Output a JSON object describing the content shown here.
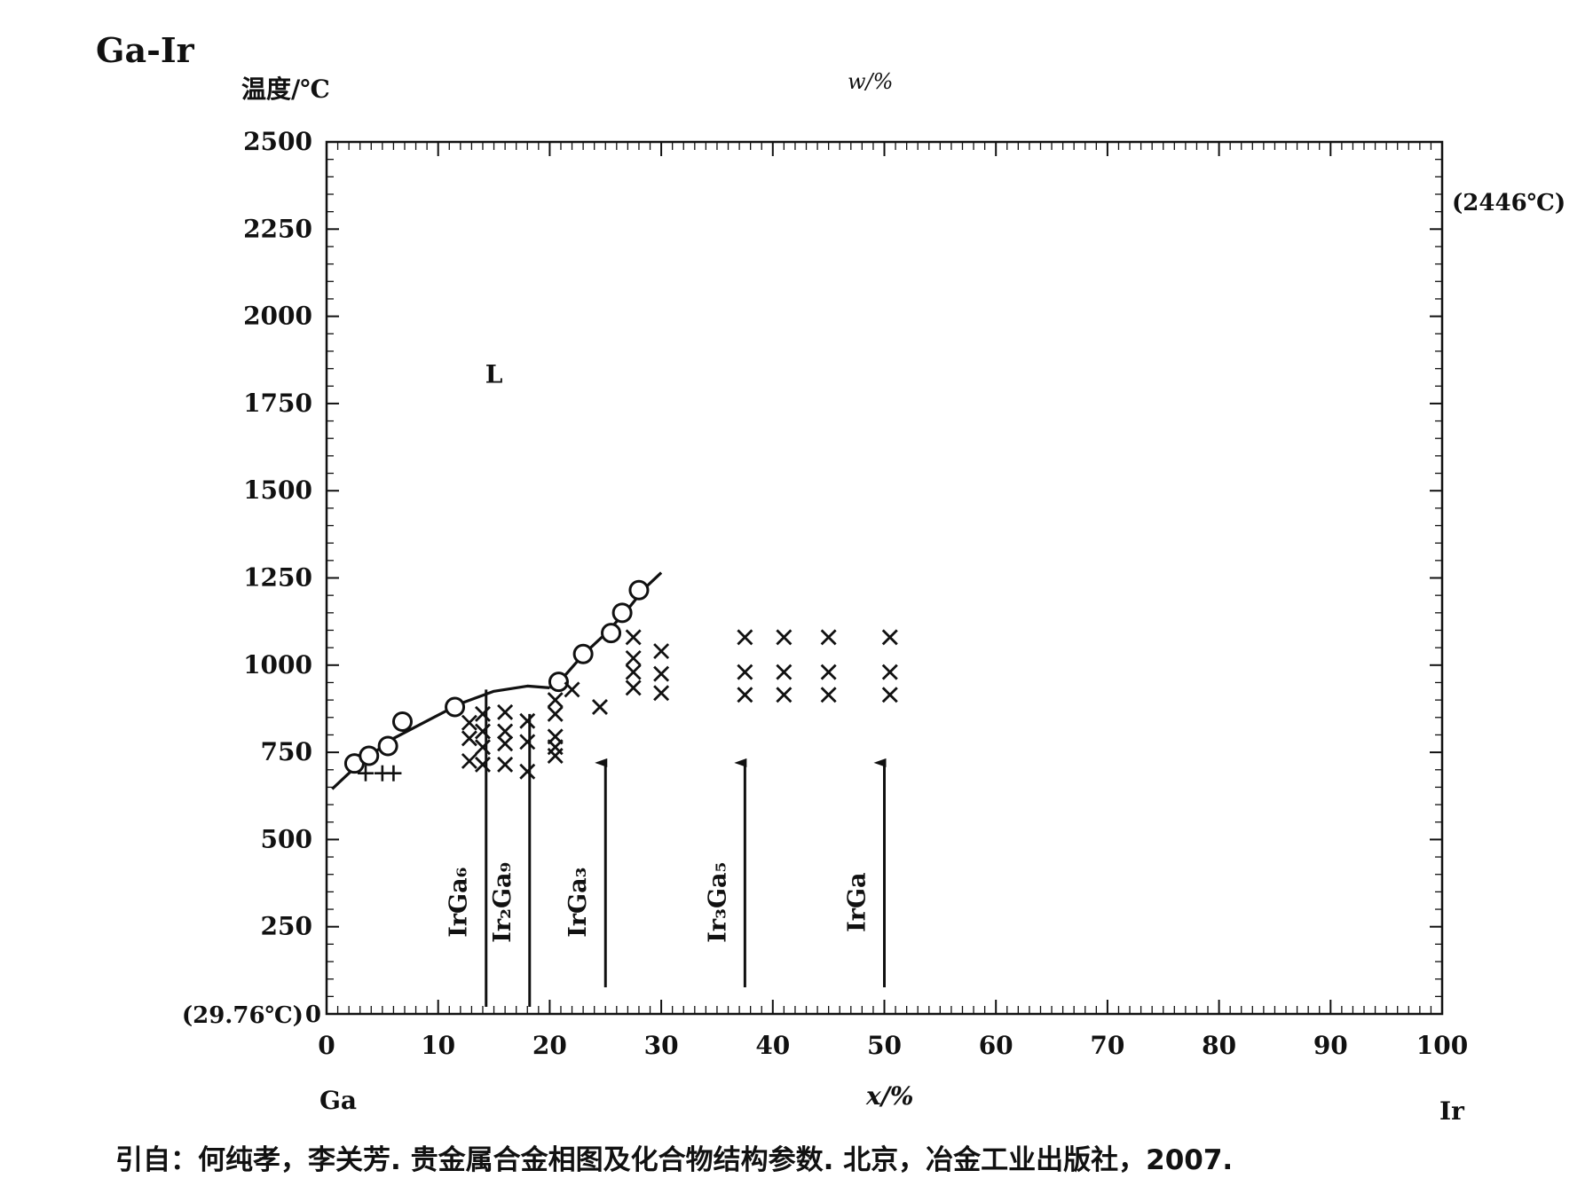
{
  "page": {
    "title": "Ga-Ir",
    "citation": "引自：何纯孝，李关芳. 贵金属合金相图及化合物结构参数. 北京，冶金工业出版社，2007."
  },
  "chart_data": {
    "type": "scatter",
    "title": "Ga-Ir",
    "ylabel": "温度/℃",
    "xlabel": "x/%",
    "top_axis_label": "w/%",
    "left_element": "Ga",
    "right_element": "Ir",
    "xlim": [
      0,
      100
    ],
    "ylim": [
      0,
      2500
    ],
    "x_ticks": [
      0,
      10,
      20,
      30,
      40,
      50,
      60,
      70,
      80,
      90,
      100
    ],
    "y_ticks": [
      0,
      250,
      500,
      750,
      1000,
      1250,
      1500,
      1750,
      2000,
      2250,
      2500
    ],
    "y_min_note": "(29.76℃)",
    "ir_melting_note": "(2446℃)",
    "ir_melting_point": 2446,
    "region_labels": [
      {
        "text": "L",
        "x": 15,
        "y": 1810
      }
    ],
    "liquidus_segments": [
      [
        [
          0.5,
          645
        ],
        [
          3,
          720
        ],
        [
          6,
          790
        ],
        [
          9,
          840
        ],
        [
          12,
          890
        ],
        [
          15,
          925
        ],
        [
          18,
          940
        ],
        [
          20,
          935
        ]
      ],
      [
        [
          20,
          935
        ],
        [
          21.5,
          975
        ],
        [
          23,
          1030
        ],
        [
          25,
          1090
        ],
        [
          27,
          1160
        ],
        [
          28.5,
          1220
        ],
        [
          30,
          1265
        ]
      ]
    ],
    "circle_points": [
      [
        2.5,
        718
      ],
      [
        3.8,
        740
      ],
      [
        5.5,
        768
      ],
      [
        6.8,
        838
      ],
      [
        11.5,
        880
      ],
      [
        20.8,
        952
      ],
      [
        23,
        1032
      ],
      [
        25.5,
        1092
      ],
      [
        26.5,
        1150
      ],
      [
        28,
        1215
      ]
    ],
    "plus_points": [
      [
        3.5,
        690
      ],
      [
        5,
        690
      ],
      [
        6,
        690
      ]
    ],
    "cross_points": [
      [
        12.8,
        835
      ],
      [
        12.8,
        790
      ],
      [
        12.8,
        725
      ],
      [
        14,
        860
      ],
      [
        14,
        810
      ],
      [
        14,
        765
      ],
      [
        14,
        715
      ],
      [
        16,
        865
      ],
      [
        16,
        810
      ],
      [
        16,
        775
      ],
      [
        16,
        715
      ],
      [
        18,
        840
      ],
      [
        18,
        780
      ],
      [
        18,
        695
      ],
      [
        20.5,
        900
      ],
      [
        20.5,
        860
      ],
      [
        20.5,
        795
      ],
      [
        20.5,
        765
      ],
      [
        20.5,
        740
      ],
      [
        22,
        930
      ],
      [
        24.5,
        880
      ],
      [
        27.5,
        1080
      ],
      [
        27.5,
        1020
      ],
      [
        27.5,
        980
      ],
      [
        27.5,
        935
      ],
      [
        30,
        1040
      ],
      [
        30,
        975
      ],
      [
        30,
        920
      ],
      [
        37.5,
        1080
      ],
      [
        37.5,
        980
      ],
      [
        37.5,
        915
      ],
      [
        41,
        1080
      ],
      [
        41,
        980
      ],
      [
        41,
        915
      ],
      [
        45,
        1080
      ],
      [
        45,
        980
      ],
      [
        45,
        915
      ],
      [
        50.5,
        1080
      ],
      [
        50.5,
        980
      ],
      [
        50.5,
        915
      ]
    ],
    "compounds": [
      {
        "name": "IrGa6",
        "x": 14.3,
        "arrow": false
      },
      {
        "name": "Ir2Ga9",
        "x": 18.2,
        "arrow": false
      },
      {
        "name": "IrGa3",
        "x": 25,
        "arrow": true
      },
      {
        "name": "Ir3Ga5",
        "x": 37.5,
        "arrow": true
      },
      {
        "name": "IrGa",
        "x": 50,
        "arrow": true
      }
    ],
    "grid": false,
    "legend": "none"
  }
}
